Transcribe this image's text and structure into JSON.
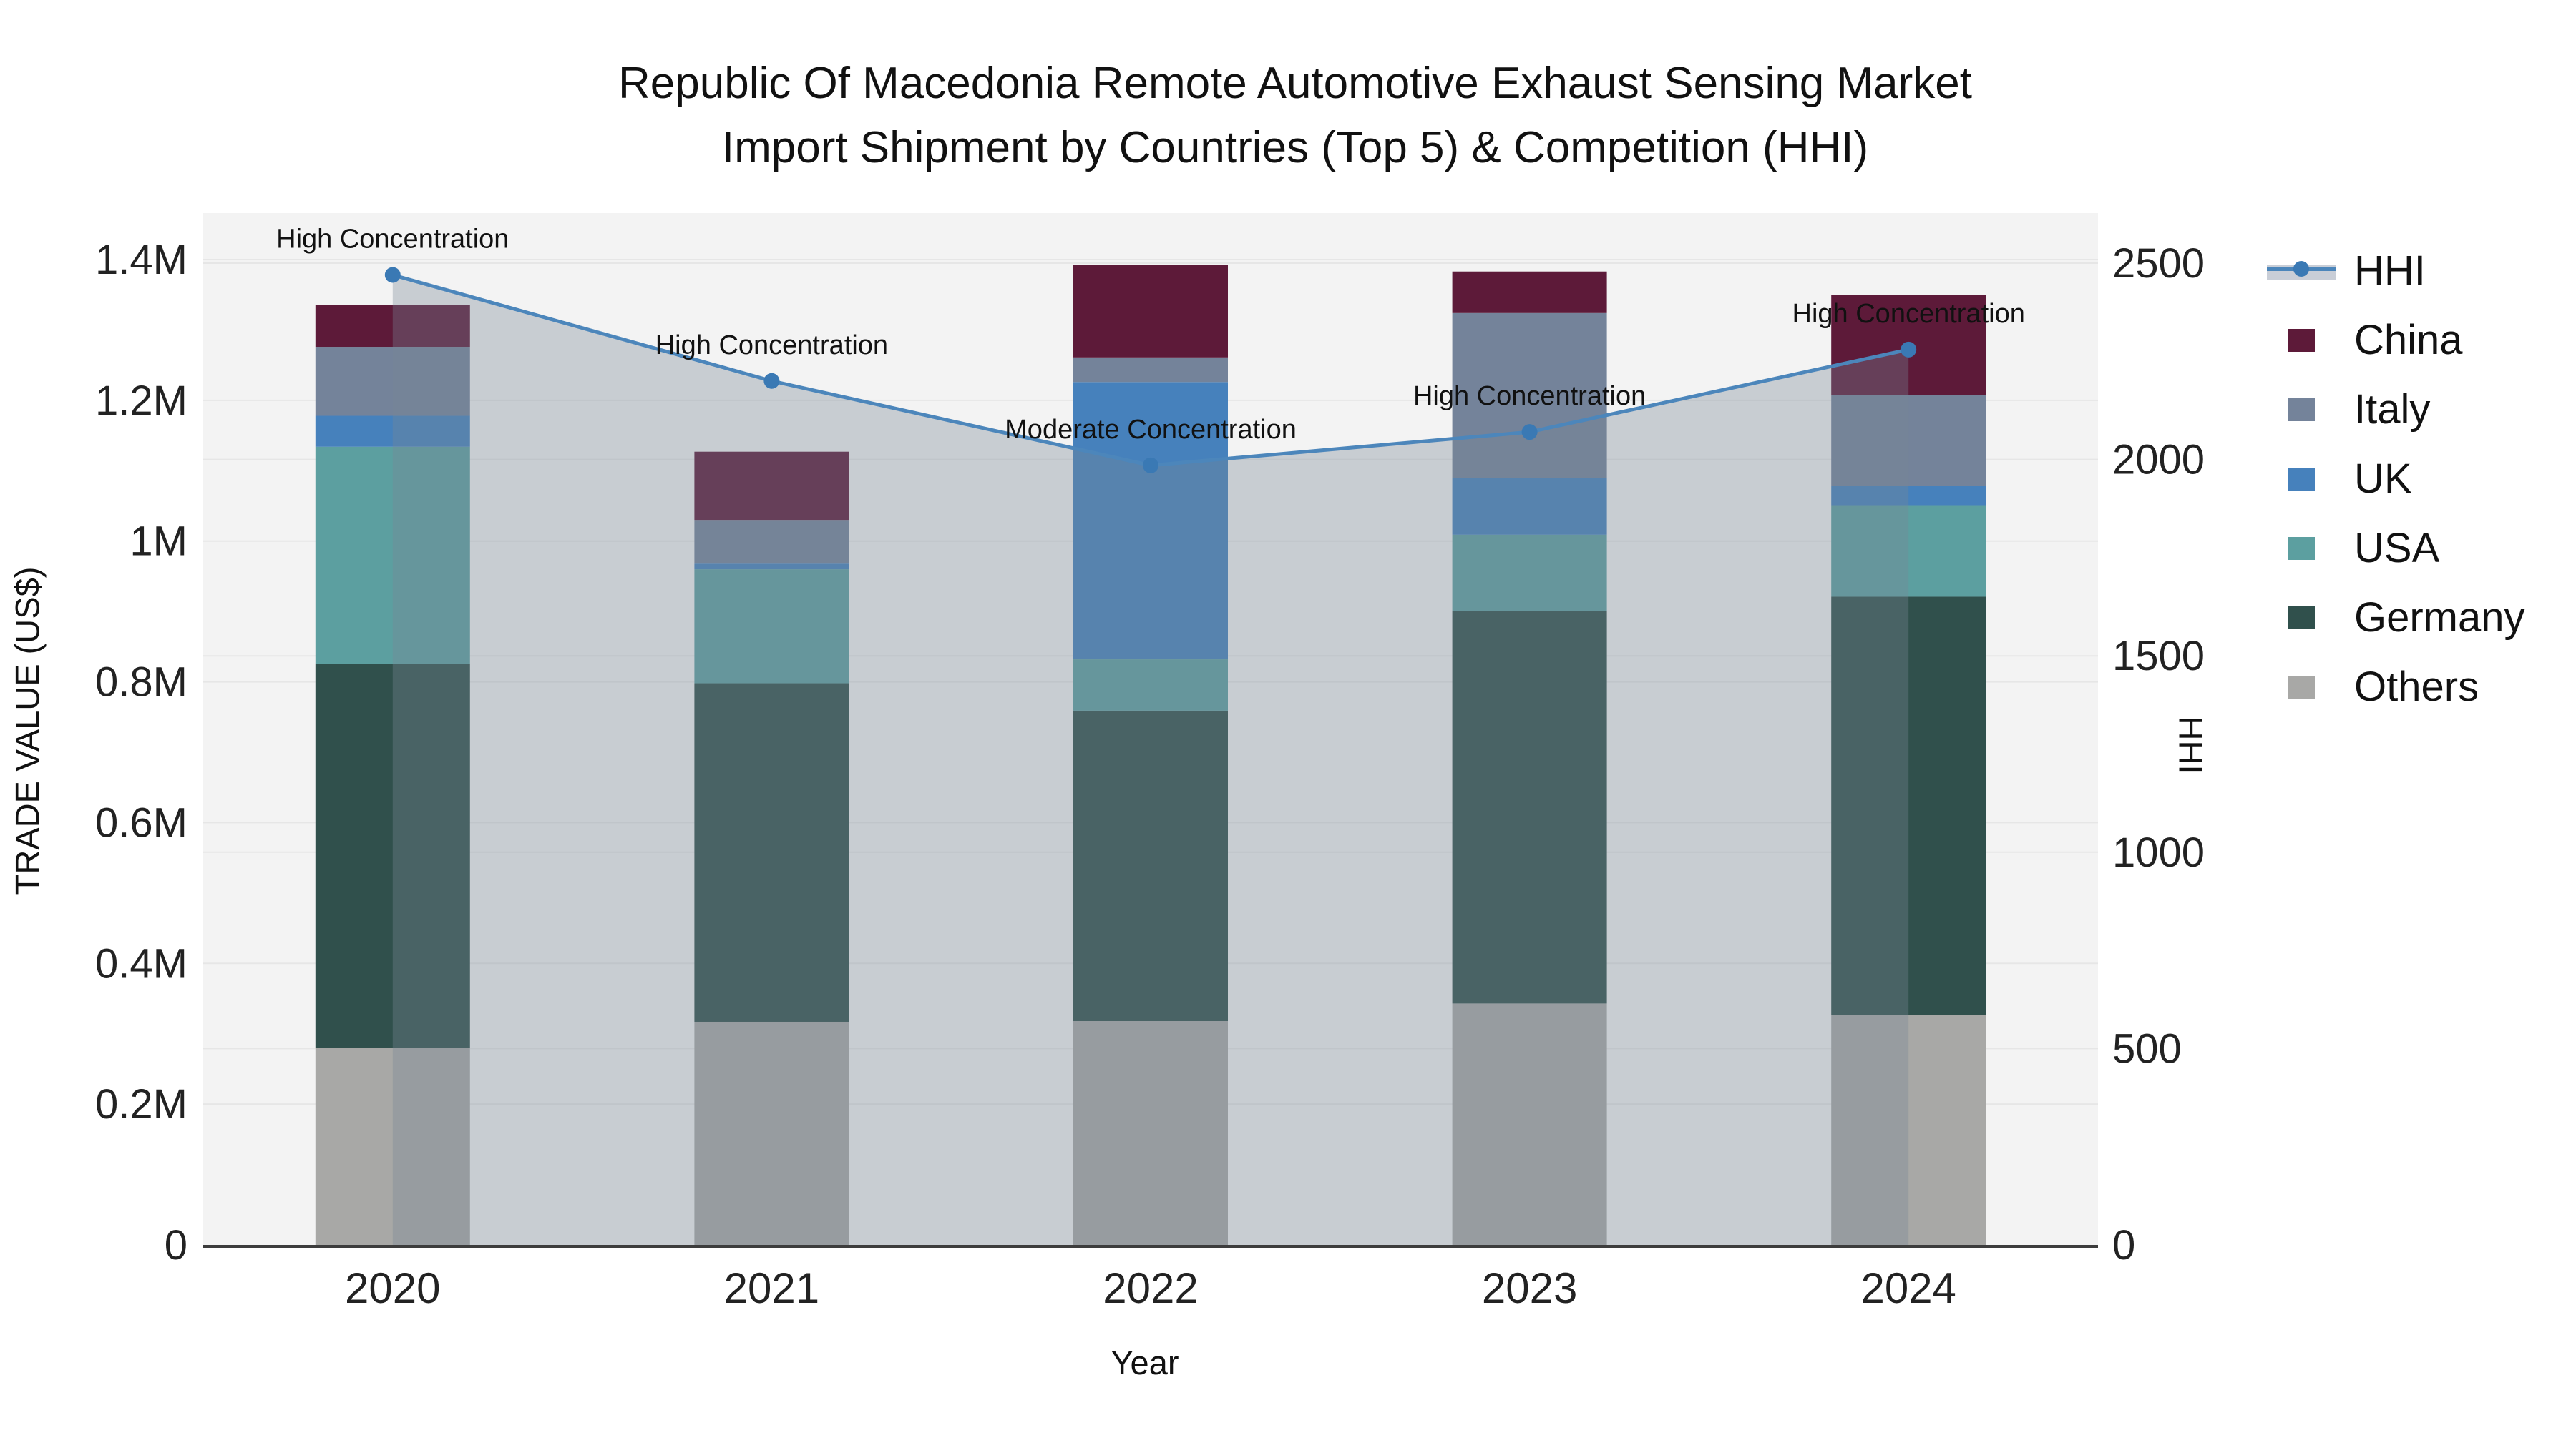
{
  "title": {
    "line1": "Republic Of Macedonia Remote Automotive Exhaust Sensing Market",
    "line2": "Import Shipment by Countries (Top 5) & Competition (HHI)"
  },
  "axes": {
    "x": {
      "title": "Year",
      "tick_labels": [
        "2020",
        "2021",
        "2022",
        "2023",
        "2024"
      ]
    },
    "y_left": {
      "title": "TRADE VALUE (US$)",
      "ticks": [
        {
          "label": "0",
          "value": 0
        },
        {
          "label": "0.2M",
          "value": 200000
        },
        {
          "label": "0.4M",
          "value": 400000
        },
        {
          "label": "0.6M",
          "value": 600000
        },
        {
          "label": "0.8M",
          "value": 800000
        },
        {
          "label": "1M",
          "value": 1000000
        },
        {
          "label": "1.2M",
          "value": 1200000
        },
        {
          "label": "1.4M",
          "value": 1400000
        }
      ]
    },
    "y_right": {
      "title": "HHI",
      "ticks": [
        {
          "label": "0",
          "value": 0
        },
        {
          "label": "500",
          "value": 500
        },
        {
          "label": "1000",
          "value": 1000
        },
        {
          "label": "1500",
          "value": 1500
        },
        {
          "label": "2000",
          "value": 2000
        },
        {
          "label": "2500",
          "value": 2500
        }
      ]
    }
  },
  "annotations": [
    {
      "category": "2020",
      "text": "High Concentration"
    },
    {
      "category": "2021",
      "text": "High Concentration"
    },
    {
      "category": "2022",
      "text": "Moderate Concentration"
    },
    {
      "category": "2023",
      "text": "High Concentration"
    },
    {
      "category": "2024",
      "text": "High Concentration"
    }
  ],
  "chart_data": {
    "type": "bar+line",
    "categories": [
      "2020",
      "2021",
      "2022",
      "2023",
      "2024"
    ],
    "stacked_bar_units": "US$",
    "series": [
      {
        "name": "Others",
        "color": "#a8a8a6",
        "values": [
          280000,
          317000,
          318000,
          343000,
          327000
        ]
      },
      {
        "name": "Germany",
        "color": "#30504c",
        "values": [
          545000,
          481000,
          441000,
          558000,
          594000
        ]
      },
      {
        "name": "USA",
        "color": "#5c9fa0",
        "values": [
          309000,
          162000,
          73000,
          108000,
          130000
        ]
      },
      {
        "name": "UK",
        "color": "#4681bc",
        "values": [
          44000,
          8000,
          394000,
          81000,
          27000
        ]
      },
      {
        "name": "Italy",
        "color": "#74839a",
        "values": [
          98000,
          62000,
          35000,
          234000,
          129000
        ]
      },
      {
        "name": "China",
        "color": "#5d1a39",
        "values": [
          59000,
          97000,
          131000,
          59000,
          143000
        ]
      }
    ],
    "line": {
      "name": "HHI",
      "values": [
        2470,
        2200,
        1985,
        2070,
        2280
      ],
      "color": "#4c86bb",
      "marker_color": "#3a79b4",
      "area_fill": "rgba(120,135,150,0.35)"
    },
    "ylim_left": [
      0,
      1400000
    ],
    "ylim_right": [
      0,
      2500
    ],
    "legend_position": "right",
    "grid": true
  },
  "colors": {
    "plot_background": "#f3f3f3",
    "gridline": "rgba(0,0,0,0.05)",
    "axis_line": "#3d3d3d",
    "tick_text": "#222222",
    "annotation_text": "#111111"
  }
}
